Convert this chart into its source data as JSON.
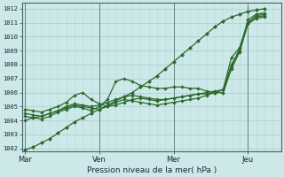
{
  "xlabel": "Pression niveau de la mer( hPa )",
  "bg_color": "#cce8e8",
  "grid_color_major": "#aacccc",
  "grid_color_minor": "#bbdddd",
  "line_color": "#2d6a2d",
  "vline_color": "#557777",
  "ylim": [
    1001.8,
    1012.4
  ],
  "yticks": [
    1002,
    1003,
    1004,
    1005,
    1006,
    1007,
    1008,
    1009,
    1010,
    1011,
    1012
  ],
  "xtick_labels": [
    "Mar",
    "Ven",
    "Mer",
    "Jeu"
  ],
  "xtick_positions": [
    0,
    9,
    18,
    27
  ],
  "xlim": [
    -0.3,
    31
  ],
  "line1_x": [
    0,
    1,
    2,
    3,
    4,
    5,
    6,
    7,
    8,
    9,
    10,
    11,
    12,
    13,
    14,
    15,
    16,
    17,
    18,
    19,
    20,
    21,
    22,
    23,
    24,
    25,
    26,
    27,
    28,
    29
  ],
  "line1_y": [
    1001.9,
    1002.1,
    1002.4,
    1002.7,
    1003.1,
    1003.5,
    1003.9,
    1004.2,
    1004.5,
    1004.8,
    1005.1,
    1005.4,
    1005.7,
    1006.0,
    1006.4,
    1006.8,
    1007.2,
    1007.7,
    1008.2,
    1008.7,
    1009.2,
    1009.7,
    1010.2,
    1010.7,
    1011.1,
    1011.4,
    1011.6,
    1011.8,
    1011.9,
    1012.0
  ],
  "line2_x": [
    0,
    1,
    2,
    3,
    4,
    5,
    6,
    7,
    8,
    9,
    10,
    11,
    12,
    13,
    14,
    15,
    16,
    17,
    18,
    19,
    20,
    21,
    22,
    23,
    24,
    25,
    26,
    27,
    28,
    29
  ],
  "line2_y": [
    1004.0,
    1004.2,
    1004.3,
    1004.5,
    1004.7,
    1004.9,
    1005.1,
    1005.0,
    1004.9,
    1004.8,
    1005.0,
    1005.3,
    1005.5,
    1005.4,
    1005.3,
    1005.2,
    1005.1,
    1005.2,
    1005.3,
    1005.4,
    1005.5,
    1005.6,
    1005.8,
    1006.0,
    1006.2,
    1008.5,
    1009.2,
    1011.0,
    1011.5,
    1011.6
  ],
  "line3_x": [
    0,
    1,
    2,
    3,
    4,
    5,
    6,
    7,
    8,
    9,
    10,
    11,
    12,
    13,
    14,
    15,
    16,
    17,
    18,
    19,
    20,
    21,
    22,
    23,
    24,
    25,
    26,
    27,
    28,
    29
  ],
  "line3_y": [
    1004.8,
    1004.7,
    1004.6,
    1004.8,
    1005.0,
    1005.3,
    1005.8,
    1006.0,
    1005.5,
    1005.2,
    1005.0,
    1005.1,
    1005.3,
    1005.5,
    1005.6,
    1005.5,
    1005.4,
    1005.5,
    1005.6,
    1005.7,
    1005.8,
    1005.9,
    1006.0,
    1006.1,
    1006.2,
    1008.0,
    1009.0,
    1011.2,
    1011.6,
    1011.7
  ],
  "line4_x": [
    0,
    1,
    2,
    3,
    4,
    5,
    6,
    7,
    8,
    9,
    10,
    11,
    12,
    13,
    14,
    15,
    16,
    17,
    18,
    19,
    20,
    21,
    22,
    23,
    24,
    25,
    26,
    27,
    28,
    29
  ],
  "line4_y": [
    1004.3,
    1004.2,
    1004.1,
    1004.3,
    1004.6,
    1004.8,
    1005.0,
    1004.9,
    1004.7,
    1005.0,
    1005.5,
    1006.8,
    1007.0,
    1006.8,
    1006.5,
    1006.4,
    1006.3,
    1006.3,
    1006.4,
    1006.4,
    1006.3,
    1006.3,
    1006.1,
    1006.0,
    1006.0,
    1007.8,
    1009.2,
    1011.0,
    1011.4,
    1011.5
  ],
  "line5_x": [
    0,
    1,
    2,
    3,
    4,
    5,
    6,
    7,
    8,
    9,
    10,
    11,
    12,
    13,
    14,
    15,
    16,
    17,
    18,
    19,
    20,
    21,
    22,
    23,
    24,
    25,
    26,
    27,
    28,
    29
  ],
  "line5_y": [
    1004.5,
    1004.4,
    1004.3,
    1004.5,
    1004.7,
    1005.0,
    1005.2,
    1005.1,
    1005.0,
    1005.1,
    1005.3,
    1005.5,
    1005.7,
    1005.8,
    1005.7,
    1005.6,
    1005.5,
    1005.5,
    1005.6,
    1005.7,
    1005.8,
    1005.9,
    1005.9,
    1006.0,
    1006.0,
    1007.7,
    1008.9,
    1010.9,
    1011.3,
    1011.4
  ],
  "vline_positions": [
    0,
    9,
    18,
    27
  ]
}
